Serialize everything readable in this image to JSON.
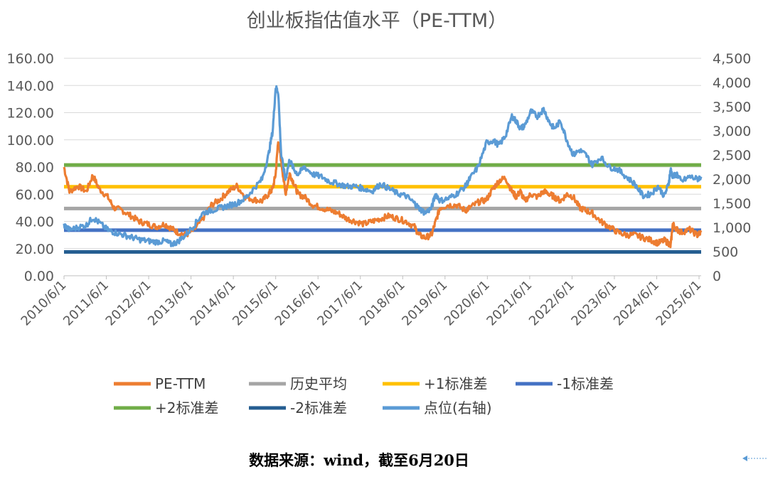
{
  "chart_data": {
    "type": "line",
    "title": "创业板指估值水平（PE-TTM）",
    "source_note": "数据来源：wind，截至6月20日",
    "x_tick_labels": [
      "2010/6/1",
      "2011/6/1",
      "2012/6/1",
      "2013/6/1",
      "2014/6/1",
      "2015/6/1",
      "2016/6/1",
      "2017/6/1",
      "2018/6/1",
      "2019/6/1",
      "2020/6/1",
      "2021/6/1",
      "2022/6/1",
      "2023/6/1",
      "2024/6/1",
      "2025/6/1"
    ],
    "y_left": {
      "min": 0,
      "max": 160,
      "ticks": [
        "0.00",
        "20.00",
        "40.00",
        "60.00",
        "80.00",
        "100.00",
        "120.00",
        "140.00",
        "160.00"
      ]
    },
    "y_right": {
      "min": 0,
      "max": 4500,
      "ticks": [
        "0",
        "500",
        "1,000",
        "1,500",
        "2,000",
        "2,500",
        "3,000",
        "3,500",
        "4,000",
        "4,500"
      ]
    },
    "grid": true,
    "legend_position": "bottom",
    "legend": [
      {
        "name": "PE-TTM",
        "color": "#ED7D31"
      },
      {
        "name": "历史平均",
        "color": "#A5A5A5"
      },
      {
        "name": "+1标准差",
        "color": "#FFC000"
      },
      {
        "name": "-1标准差",
        "color": "#4472C4"
      },
      {
        "name": "+2标准差",
        "color": "#70AD47"
      },
      {
        "name": "-2标准差",
        "color": "#255E91"
      },
      {
        "name": "点位(右轴)",
        "color": "#5B9BD5"
      }
    ],
    "reference_lines": [
      {
        "name": "+2标准差",
        "value": 81.5,
        "color": "#70AD47"
      },
      {
        "name": "+1标准差",
        "value": 65.5,
        "color": "#FFC000"
      },
      {
        "name": "历史平均",
        "value": 49.5,
        "color": "#A5A5A5"
      },
      {
        "name": "-1标准差",
        "value": 33.5,
        "color": "#4472C4"
      },
      {
        "name": "-2标准差",
        "value": 17.5,
        "color": "#255E91"
      }
    ],
    "series": [
      {
        "name": "PE-TTM",
        "axis": "left",
        "color": "#ED7D31",
        "x": [
          2010.42,
          2010.55,
          2010.75,
          2010.95,
          2011.1,
          2011.25,
          2011.45,
          2011.6,
          2011.8,
          2012.0,
          2012.2,
          2012.4,
          2012.6,
          2012.8,
          2012.95,
          2013.1,
          2013.3,
          2013.5,
          2013.7,
          2013.9,
          2014.1,
          2014.3,
          2014.5,
          2014.7,
          2014.9,
          2015.1,
          2015.25,
          2015.35,
          2015.42,
          2015.48,
          2015.55,
          2015.65,
          2015.75,
          2015.85,
          2015.95,
          2016.1,
          2016.3,
          2016.5,
          2016.7,
          2016.9,
          2017.1,
          2017.3,
          2017.5,
          2017.7,
          2017.9,
          2018.1,
          2018.3,
          2018.5,
          2018.7,
          2018.8,
          2018.95,
          2019.1,
          2019.2,
          2019.3,
          2019.5,
          2019.7,
          2019.9,
          2020.0,
          2020.2,
          2020.4,
          2020.55,
          2020.7,
          2020.85,
          2021.0,
          2021.1,
          2021.2,
          2021.3,
          2021.45,
          2021.6,
          2021.75,
          2021.9,
          2022.0,
          2022.15,
          2022.3,
          2022.45,
          2022.6,
          2022.75,
          2022.9,
          2023.1,
          2023.3,
          2023.5,
          2023.7,
          2023.9,
          2024.1,
          2024.3,
          2024.45,
          2024.6,
          2024.7,
          2024.75,
          2024.8,
          2024.9,
          2025.0,
          2025.2,
          2025.38,
          2025.47
        ],
        "values": [
          80,
          62,
          66,
          62,
          74,
          64,
          58,
          50,
          48,
          44,
          40,
          38,
          36,
          38,
          35,
          32,
          30,
          34,
          42,
          52,
          56,
          62,
          66,
          58,
          56,
          55,
          60,
          64,
          75,
          100,
          85,
          60,
          75,
          68,
          60,
          58,
          52,
          50,
          48,
          46,
          42,
          40,
          38,
          40,
          42,
          44,
          42,
          40,
          36,
          30,
          28,
          30,
          40,
          50,
          52,
          52,
          48,
          50,
          54,
          56,
          64,
          70,
          72,
          62,
          58,
          62,
          55,
          60,
          58,
          62,
          60,
          58,
          55,
          60,
          58,
          50,
          48,
          46,
          40,
          36,
          32,
          30,
          30,
          28,
          26,
          24,
          26,
          24,
          22,
          38,
          34,
          32,
          34,
          30,
          32
        ]
      },
      {
        "name": "点位(右轴)",
        "axis": "right",
        "color": "#5B9BD5",
        "x": [
          2010.42,
          2010.55,
          2010.75,
          2010.95,
          2011.1,
          2011.25,
          2011.45,
          2011.6,
          2011.8,
          2012.0,
          2012.2,
          2012.4,
          2012.6,
          2012.8,
          2012.95,
          2013.1,
          2013.3,
          2013.5,
          2013.7,
          2013.9,
          2014.1,
          2014.3,
          2014.5,
          2014.7,
          2014.9,
          2015.1,
          2015.25,
          2015.35,
          2015.42,
          2015.48,
          2015.55,
          2015.65,
          2015.75,
          2015.85,
          2015.95,
          2016.1,
          2016.3,
          2016.5,
          2016.7,
          2016.9,
          2017.1,
          2017.3,
          2017.5,
          2017.7,
          2017.9,
          2018.1,
          2018.3,
          2018.5,
          2018.7,
          2018.8,
          2018.95,
          2019.1,
          2019.2,
          2019.3,
          2019.5,
          2019.7,
          2019.9,
          2020.0,
          2020.2,
          2020.4,
          2020.55,
          2020.7,
          2020.85,
          2021.0,
          2021.1,
          2021.2,
          2021.3,
          2021.45,
          2021.6,
          2021.75,
          2021.9,
          2022.0,
          2022.15,
          2022.3,
          2022.45,
          2022.6,
          2022.75,
          2022.9,
          2023.1,
          2023.3,
          2023.5,
          2023.7,
          2023.9,
          2024.1,
          2024.3,
          2024.45,
          2024.6,
          2024.7,
          2024.75,
          2024.8,
          2024.9,
          2025.0,
          2025.2,
          2025.38,
          2025.47
        ],
        "values": [
          1050,
          950,
          1000,
          1050,
          1200,
          1100,
          950,
          900,
          850,
          800,
          750,
          720,
          700,
          720,
          650,
          700,
          850,
          1050,
          1300,
          1350,
          1400,
          1450,
          1500,
          1600,
          1800,
          2000,
          2500,
          3000,
          3900,
          3800,
          2500,
          2000,
          2400,
          2200,
          2100,
          2250,
          2100,
          2050,
          1950,
          1900,
          1850,
          1850,
          1800,
          1750,
          1900,
          1800,
          1700,
          1650,
          1500,
          1400,
          1300,
          1400,
          1700,
          1550,
          1600,
          1700,
          1850,
          2000,
          2250,
          2750,
          2800,
          2700,
          2900,
          3300,
          3200,
          3050,
          3100,
          3400,
          3300,
          3450,
          3150,
          3050,
          3200,
          2800,
          2500,
          2600,
          2500,
          2300,
          2450,
          2250,
          2200,
          2050,
          1900,
          1650,
          1700,
          1850,
          1650,
          1900,
          2200,
          2050,
          2100,
          1950,
          2050,
          2000,
          2050
        ]
      }
    ]
  }
}
